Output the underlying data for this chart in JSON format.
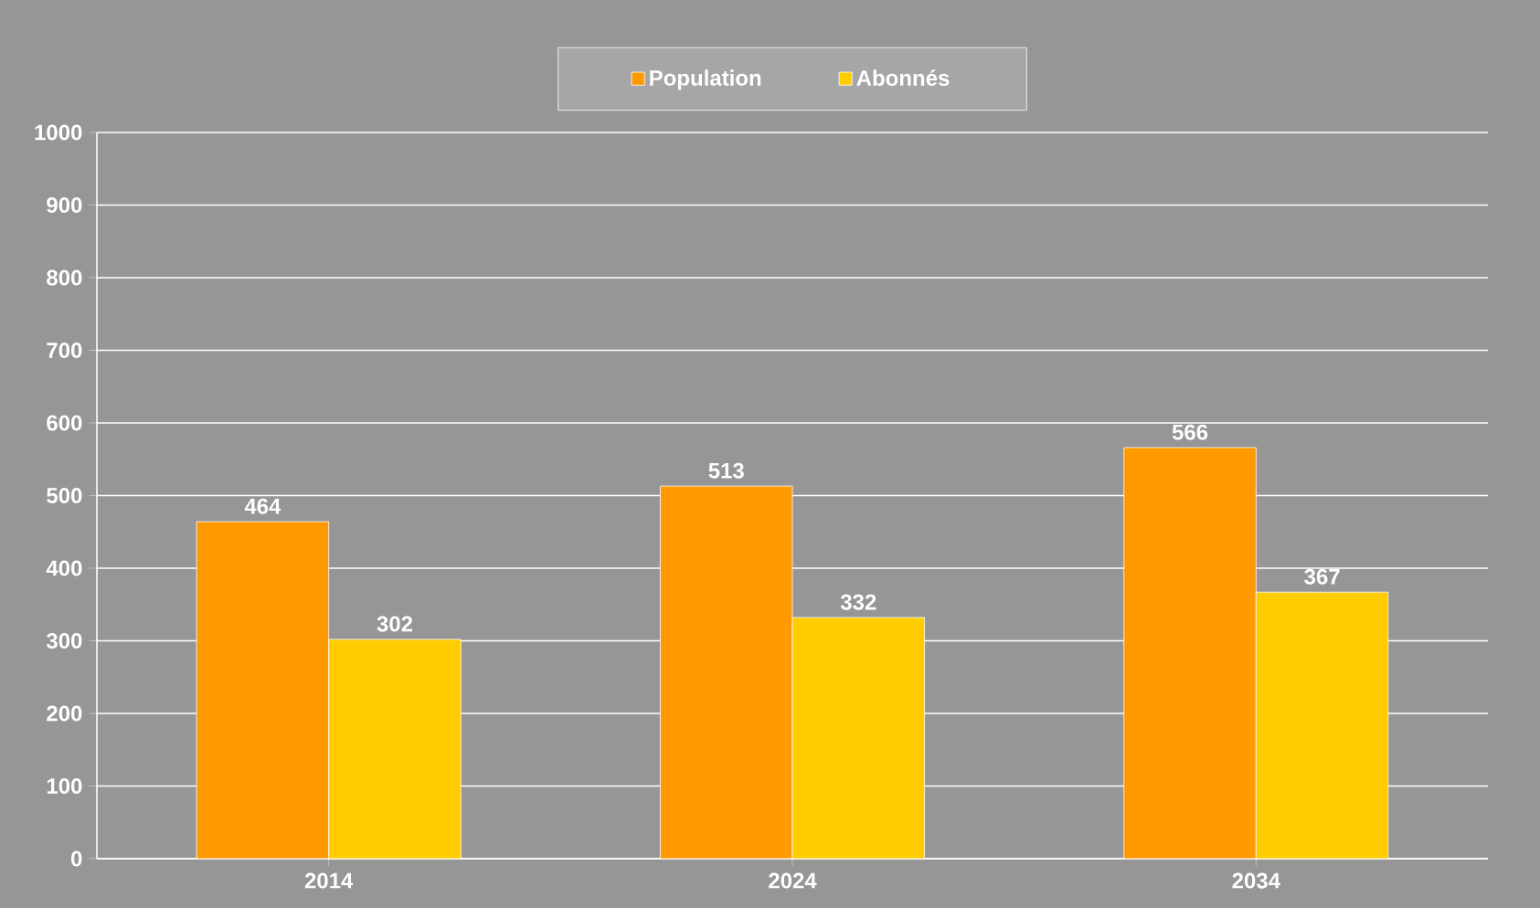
{
  "chart_data": {
    "type": "bar",
    "categories": [
      "2014",
      "2024",
      "2034"
    ],
    "series": [
      {
        "name": "Population",
        "color": "#ff9900",
        "values": [
          464,
          513,
          566
        ]
      },
      {
        "name": "Abonnés",
        "color": "#ffcc00",
        "values": [
          302,
          332,
          367
        ]
      }
    ],
    "ylim": [
      0,
      1000
    ],
    "yticks": [
      0,
      100,
      200,
      300,
      400,
      500,
      600,
      700,
      800,
      900,
      1000
    ],
    "grid": "y",
    "legend": "top",
    "data_labels": true
  }
}
